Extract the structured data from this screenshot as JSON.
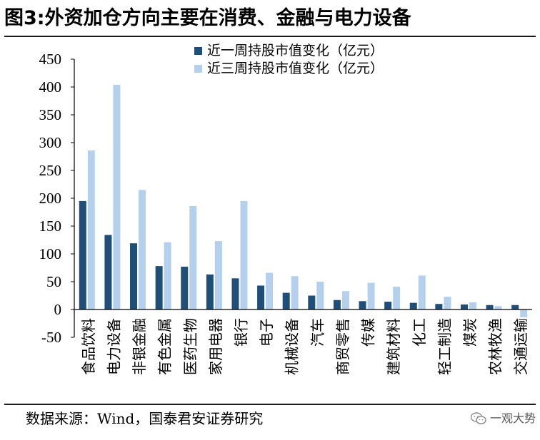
{
  "header": {
    "title": "图3:外资加仓方向主要在消费、金融与电力设备"
  },
  "footer": {
    "source": "数据来源：Wind，国泰君安证券研究",
    "watermark": "一观大势"
  },
  "colors": {
    "series1": "#1f4e79",
    "series2": "#b4d0ec",
    "axis": "#000000"
  },
  "chart_data": {
    "type": "bar",
    "title": "",
    "xlabel": "",
    "ylabel": "",
    "ylim": [
      -50,
      450
    ],
    "yticks": [
      -50,
      0,
      50,
      100,
      150,
      200,
      250,
      300,
      350,
      400,
      450
    ],
    "grid": false,
    "legend_position": "top-center",
    "categories": [
      "食品饮料",
      "电力设备",
      "非银金融",
      "有色金属",
      "医药生物",
      "家用电器",
      "银行",
      "电子",
      "机械设备",
      "汽车",
      "商贸零售",
      "传媒",
      "建筑材料",
      "化工",
      "轻工制造",
      "煤炭",
      "农林牧渔",
      "交通运输"
    ],
    "series": [
      {
        "name": "近一周持股市值变化（亿元）",
        "values": [
          195,
          134,
          119,
          78,
          77,
          63,
          56,
          43,
          30,
          25,
          17,
          15,
          14,
          12,
          10,
          9,
          8,
          8
        ]
      },
      {
        "name": "近三周持股市值变化（亿元）",
        "values": [
          286,
          404,
          215,
          121,
          186,
          123,
          195,
          66,
          60,
          50,
          33,
          48,
          41,
          61,
          23,
          13,
          6,
          -14
        ]
      }
    ]
  }
}
